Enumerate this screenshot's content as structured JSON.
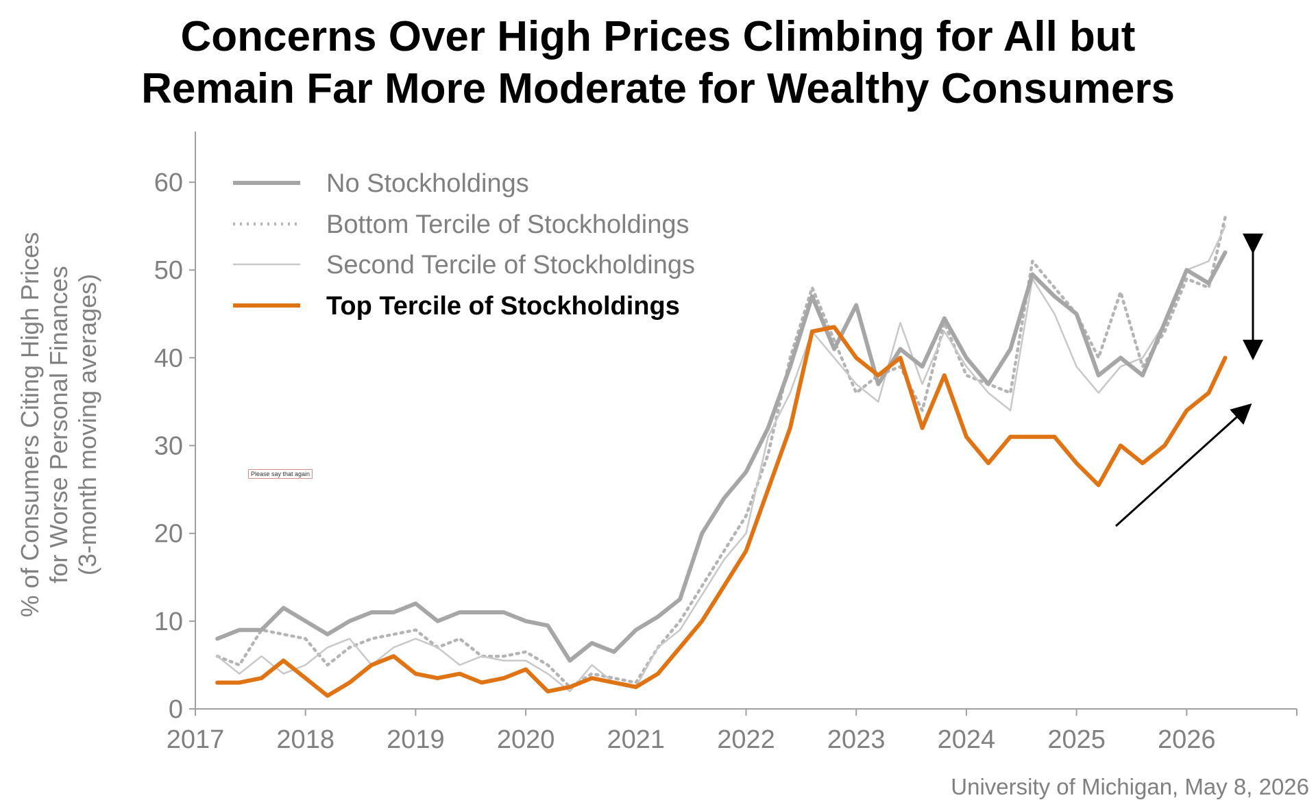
{
  "title_line1": "Concerns Over High Prices Climbing for All but",
  "title_line2": "Remain Far More Moderate for Wealthy Consumers",
  "source": "University of Michigan, May 8, 2026",
  "tooltip": "Please say that again",
  "colors": {
    "gray": "#a6a6a6",
    "light_gray": "#c8c8c8",
    "orange": "#e07313",
    "axis_text": "#808080"
  },
  "chart_data": {
    "type": "line",
    "ylabel_lines": [
      "% of Consumers Citing High Prices",
      "for Worse Personal Finances",
      "(3-month moving averages)"
    ],
    "xlim": [
      2017,
      2027
    ],
    "ylim": [
      0,
      65
    ],
    "yticks": [
      0,
      10,
      20,
      30,
      40,
      50,
      60
    ],
    "xticks": [
      "2017",
      "2018",
      "2019",
      "2020",
      "2021",
      "2022",
      "2023",
      "2024",
      "2025",
      "2026"
    ],
    "legend_position": "top-left",
    "series": [
      {
        "name": "No Stockholdings",
        "style": "thick-gray",
        "x": [
          2017.2,
          2017.4,
          2017.6,
          2017.8,
          2018.0,
          2018.2,
          2018.4,
          2018.6,
          2018.8,
          2019.0,
          2019.2,
          2019.4,
          2019.6,
          2019.8,
          2020.0,
          2020.2,
          2020.4,
          2020.6,
          2020.8,
          2021.0,
          2021.2,
          2021.4,
          2021.6,
          2021.8,
          2022.0,
          2022.2,
          2022.4,
          2022.6,
          2022.8,
          2023.0,
          2023.2,
          2023.4,
          2023.6,
          2023.8,
          2024.0,
          2024.2,
          2024.4,
          2024.6,
          2024.8,
          2025.0,
          2025.2,
          2025.4,
          2025.6,
          2025.8,
          2026.0,
          2026.2,
          2026.35
        ],
        "values": [
          8,
          9,
          9,
          11.5,
          10,
          8.5,
          10,
          11,
          11,
          12,
          10,
          11,
          11,
          11,
          10,
          9.5,
          5.5,
          7.5,
          6.5,
          9,
          10.5,
          12.5,
          20,
          24,
          27,
          32,
          39,
          47,
          41,
          46,
          37,
          41,
          39,
          44.5,
          40,
          37,
          41,
          49.5,
          47,
          45,
          38,
          40,
          38,
          44,
          50,
          48.5,
          52
        ]
      },
      {
        "name": "Bottom Tercile of Stockholdings",
        "style": "dotted-gray",
        "x": [
          2017.2,
          2017.4,
          2017.6,
          2017.8,
          2018.0,
          2018.2,
          2018.4,
          2018.6,
          2018.8,
          2019.0,
          2019.2,
          2019.4,
          2019.6,
          2019.8,
          2020.0,
          2020.2,
          2020.4,
          2020.6,
          2020.8,
          2021.0,
          2021.2,
          2021.4,
          2021.6,
          2021.8,
          2022.0,
          2022.2,
          2022.4,
          2022.6,
          2022.8,
          2023.0,
          2023.2,
          2023.4,
          2023.6,
          2023.8,
          2024.0,
          2024.2,
          2024.4,
          2024.6,
          2024.8,
          2025.0,
          2025.2,
          2025.4,
          2025.6,
          2025.8,
          2026.0,
          2026.2,
          2026.35
        ],
        "values": [
          6,
          5,
          9,
          8.5,
          8,
          5,
          7,
          8,
          8.5,
          9,
          7,
          8,
          6,
          6,
          6.5,
          5,
          2.5,
          4,
          3.5,
          3,
          7,
          10,
          14,
          18,
          22,
          29,
          40,
          48,
          42,
          36,
          38,
          39,
          34,
          44,
          38,
          37,
          36,
          51,
          48,
          45,
          40,
          47.5,
          39,
          43,
          49,
          48,
          56
        ]
      },
      {
        "name": "Second Tercile of Stockholdings",
        "style": "thin-gray",
        "x": [
          2017.2,
          2017.4,
          2017.6,
          2017.8,
          2018.0,
          2018.2,
          2018.4,
          2018.6,
          2018.8,
          2019.0,
          2019.2,
          2019.4,
          2019.6,
          2019.8,
          2020.0,
          2020.2,
          2020.4,
          2020.6,
          2020.8,
          2021.0,
          2021.2,
          2021.4,
          2021.6,
          2021.8,
          2022.0,
          2022.2,
          2022.4,
          2022.6,
          2022.8,
          2023.0,
          2023.2,
          2023.4,
          2023.6,
          2023.8,
          2024.0,
          2024.2,
          2024.4,
          2024.6,
          2024.8,
          2025.0,
          2025.2,
          2025.4,
          2025.6,
          2025.8,
          2026.0,
          2026.2,
          2026.35
        ],
        "values": [
          6,
          4,
          6,
          4,
          5,
          7,
          8,
          5,
          7,
          8,
          7,
          5,
          6,
          5.5,
          5.5,
          4,
          2,
          5,
          3,
          2.5,
          7,
          9,
          13,
          17,
          20,
          31,
          36,
          43,
          40,
          37,
          35,
          44,
          37,
          43,
          39,
          36,
          34,
          49,
          45,
          39,
          36,
          39,
          40,
          44,
          50,
          51,
          55
        ]
      },
      {
        "name": "Top Tercile of Stockholdings",
        "style": "thick-orange",
        "x": [
          2017.2,
          2017.4,
          2017.6,
          2017.8,
          2018.0,
          2018.2,
          2018.4,
          2018.6,
          2018.8,
          2019.0,
          2019.2,
          2019.4,
          2019.6,
          2019.8,
          2020.0,
          2020.2,
          2020.4,
          2020.6,
          2020.8,
          2021.0,
          2021.2,
          2021.4,
          2021.6,
          2021.8,
          2022.0,
          2022.2,
          2022.4,
          2022.6,
          2022.8,
          2023.0,
          2023.2,
          2023.4,
          2023.6,
          2023.8,
          2024.0,
          2024.2,
          2024.4,
          2024.6,
          2024.8,
          2025.0,
          2025.2,
          2025.4,
          2025.6,
          2025.8,
          2026.0,
          2026.2,
          2026.35
        ],
        "values": [
          3,
          3,
          3.5,
          5.5,
          3.5,
          1.5,
          3,
          5,
          6,
          4,
          3.5,
          4,
          3,
          3.5,
          4.5,
          2,
          2.5,
          3.5,
          3,
          2.5,
          4,
          7,
          10,
          14,
          18,
          25,
          32,
          43,
          43.5,
          40,
          38,
          40,
          32,
          38,
          31,
          28,
          31,
          31,
          31,
          28,
          25.5,
          30,
          28,
          30,
          34,
          36,
          40
        ]
      }
    ]
  }
}
